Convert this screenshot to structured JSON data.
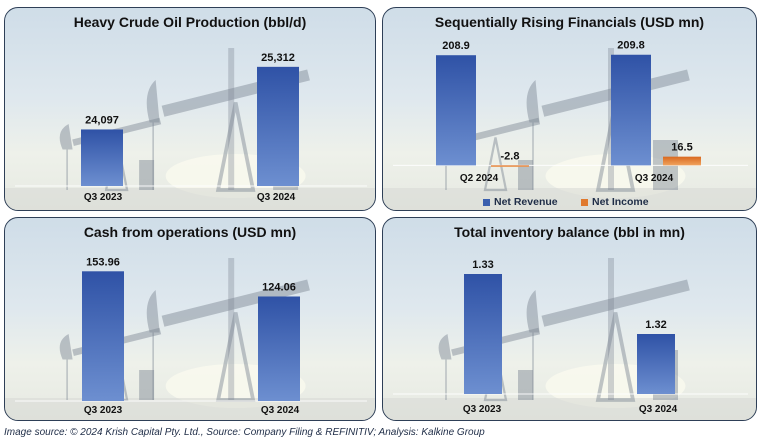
{
  "colors": {
    "revenue": "#3a5fae",
    "income": "#e07a2e"
  },
  "source_note": "Image source: © 2024 Krish Capital Pty. Ltd., Source: Company Filing & REFINITIV; Analysis: Kalkine Group",
  "chart_data": [
    {
      "type": "bar",
      "title": "Heavy Crude Oil Production (bbl/d)",
      "categories": [
        "Q3 2023",
        "Q3 2024"
      ],
      "values": [
        24097,
        25312
      ],
      "labels": [
        "24,097",
        "25,312"
      ],
      "ylim": [
        23000,
        25600
      ]
    },
    {
      "type": "bar",
      "title": "Sequentially Rising Financials (USD mn)",
      "categories": [
        "Q2 2024",
        "Q3 2024"
      ],
      "series": [
        {
          "name": "Net Revenue",
          "values": [
            208.9,
            209.8
          ],
          "labels": [
            "208.9",
            "209.8"
          ]
        },
        {
          "name": "Net Income",
          "values": [
            -2.8,
            16.5
          ],
          "labels": [
            "-2.8",
            "16.5"
          ]
        }
      ],
      "ylim": [
        -5,
        215
      ]
    },
    {
      "type": "bar",
      "title": "Cash from operations (USD mn)",
      "categories": [
        "Q3 2023",
        "Q3 2024"
      ],
      "values": [
        153.96,
        124.06
      ],
      "labels": [
        "153.96",
        "124.06"
      ],
      "ylim": [
        0,
        165
      ]
    },
    {
      "type": "bar",
      "title": "Total inventory balance (bbl in mn)",
      "categories": [
        "Q3 2023",
        "Q3 2024"
      ],
      "values": [
        1.33,
        1.32
      ],
      "labels": [
        "1.33",
        "1.32"
      ],
      "ylim": [
        1.31,
        1.332
      ]
    }
  ]
}
